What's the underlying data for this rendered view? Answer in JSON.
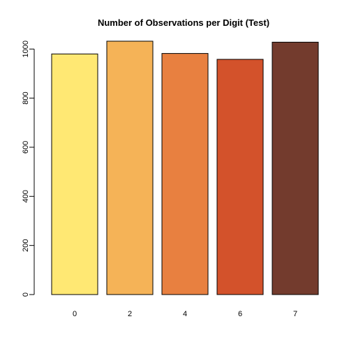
{
  "chart_data": {
    "type": "bar",
    "title": "Number of Observations per Digit (Test)",
    "xlabel": "",
    "ylabel": "",
    "categories": [
      "0",
      "2",
      "4",
      "6",
      "7"
    ],
    "values": [
      980,
      1032,
      982,
      958,
      1028
    ],
    "colors": [
      "#FFE873",
      "#F5B357",
      "#E88040",
      "#D3522B",
      "#733B2D"
    ],
    "ylim": [
      0,
      1032
    ],
    "yticks": [
      0,
      200,
      400,
      600,
      800,
      1000
    ],
    "grid": false,
    "legend": "none"
  }
}
